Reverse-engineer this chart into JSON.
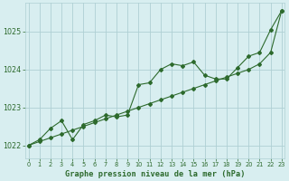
{
  "title": "Graphe pression niveau de la mer (hPa)",
  "x": [
    0,
    1,
    2,
    3,
    4,
    5,
    6,
    7,
    8,
    9,
    10,
    11,
    12,
    13,
    14,
    15,
    16,
    17,
    18,
    19,
    20,
    21,
    22,
    23
  ],
  "line1": [
    1022.0,
    1022.15,
    1022.45,
    1022.65,
    1022.15,
    1022.55,
    1022.65,
    1022.8,
    1022.75,
    1022.8,
    1023.6,
    1023.65,
    1024.0,
    1024.15,
    1024.1,
    1024.2,
    1023.85,
    1023.75,
    1023.75,
    1024.05,
    1024.35,
    1024.45,
    1025.05,
    1025.55
  ],
  "line2": [
    1022.0,
    1022.1,
    1022.2,
    1022.3,
    1022.4,
    1022.5,
    1022.6,
    1022.7,
    1022.8,
    1022.9,
    1023.0,
    1023.1,
    1023.2,
    1023.3,
    1023.4,
    1023.5,
    1023.6,
    1023.7,
    1023.8,
    1023.9,
    1024.0,
    1024.15,
    1024.45,
    1025.55
  ],
  "line_color": "#2d6a2d",
  "bg_color": "#d8eef0",
  "grid_color": "#afd0d4",
  "title_color": "#2d6a2d",
  "ylim": [
    1021.65,
    1025.75
  ],
  "yticks": [
    1022,
    1023,
    1024,
    1025
  ],
  "xlim": [
    -0.3,
    23.3
  ],
  "xticks": [
    0,
    1,
    2,
    3,
    4,
    5,
    6,
    7,
    8,
    9,
    10,
    11,
    12,
    13,
    14,
    15,
    16,
    17,
    18,
    19,
    20,
    21,
    22,
    23
  ]
}
